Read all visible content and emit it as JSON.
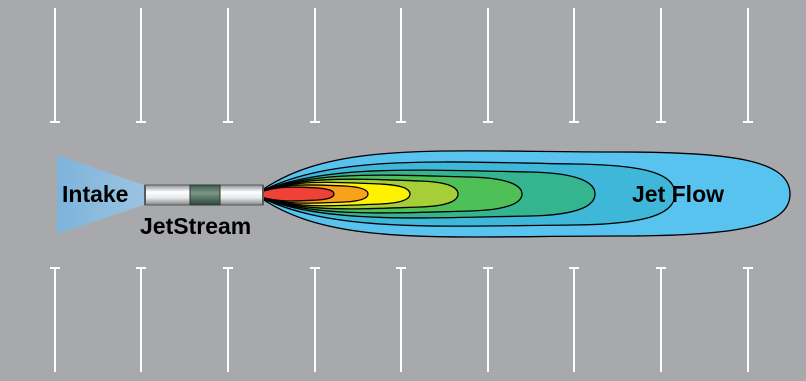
{
  "labels": {
    "intake": "Intake",
    "device": "JetStream",
    "flow": "Jet Flow"
  },
  "colors": {
    "floor": "#a7a9ac",
    "lane_marking": "#ffffff",
    "intake_cone": "#7fb3d6",
    "flow_outer": "#58c3ee",
    "flow_bands": [
      "#3fb7d9",
      "#35b58f",
      "#4fbf57",
      "#a6ce39",
      "#fff200",
      "#f9a11b",
      "#ef4136"
    ],
    "outline": "#000000"
  },
  "icons": {
    "device": "jet-fan-unit"
  }
}
